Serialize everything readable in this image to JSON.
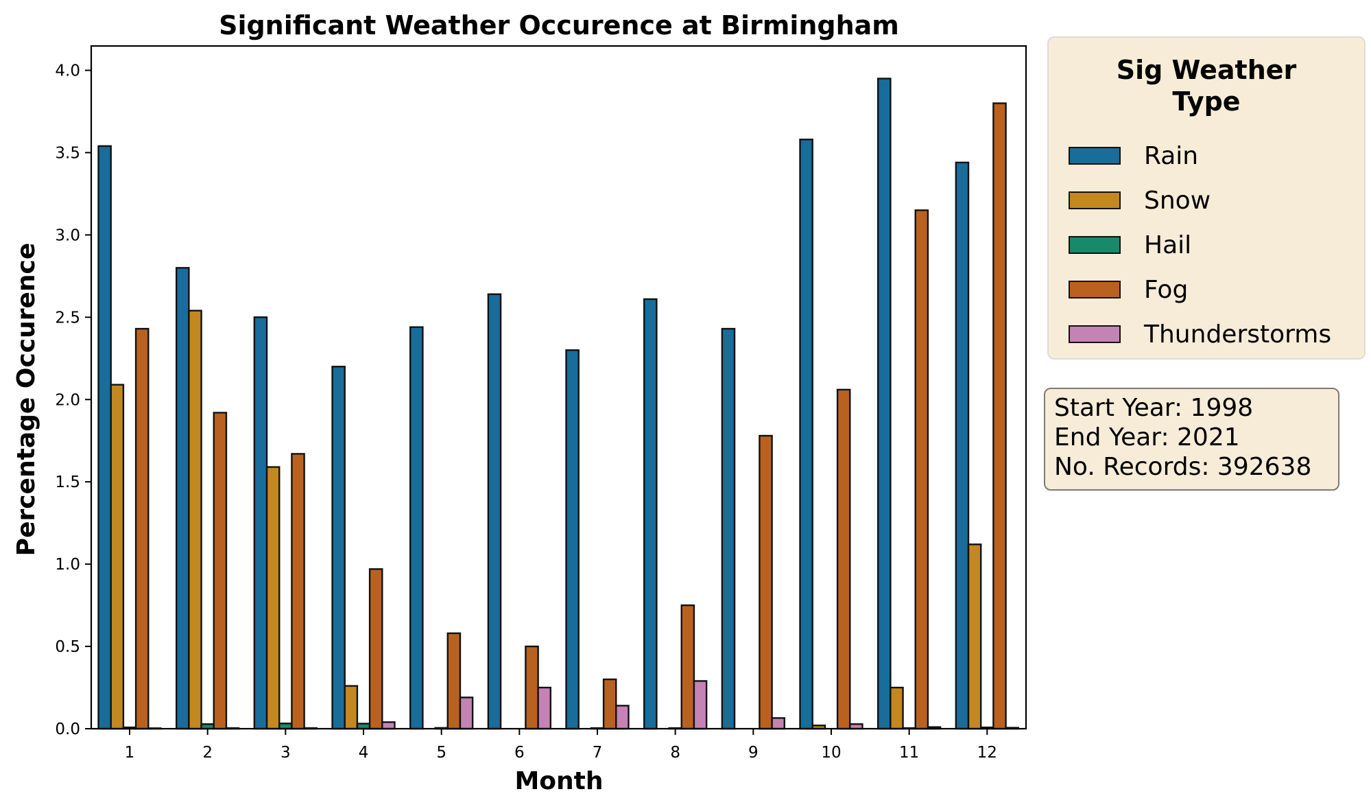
{
  "chart_data": {
    "type": "bar",
    "title": "Significant Weather Occurence at Birmingham",
    "xlabel": "Month",
    "ylabel": "Percentage Occurence",
    "categories": [
      "1",
      "2",
      "3",
      "4",
      "5",
      "6",
      "7",
      "8",
      "9",
      "10",
      "11",
      "12"
    ],
    "yticks": [
      "0.0",
      "0.5",
      "1.0",
      "1.5",
      "2.0",
      "2.5",
      "3.0",
      "3.5",
      "4.0"
    ],
    "ylim": [
      0,
      4.15
    ],
    "grid": false,
    "legend_title": "Sig Weather Type",
    "legend_title_lines": [
      "Sig Weather",
      "Type"
    ],
    "legend_position": "outside-right-top",
    "series": [
      {
        "name": "Rain",
        "color": "#186d9b",
        "values": [
          3.54,
          2.8,
          2.5,
          2.2,
          2.44,
          2.64,
          2.3,
          2.61,
          2.43,
          3.58,
          3.95,
          3.44
        ]
      },
      {
        "name": "Snow",
        "color": "#c38820",
        "values": [
          2.09,
          2.54,
          1.59,
          0.26,
          0.0,
          0.0,
          0.0,
          0.0,
          0.0,
          0.02,
          0.25,
          1.12
        ]
      },
      {
        "name": "Hail",
        "color": "#188a69",
        "values": [
          0.008,
          0.028,
          0.032,
          0.031,
          0.005,
          0.0,
          0.004,
          0.004,
          0.0,
          0.0,
          0.004,
          0.008
        ]
      },
      {
        "name": "Fog",
        "color": "#b9621f",
        "values": [
          2.43,
          1.92,
          1.67,
          0.97,
          0.58,
          0.5,
          0.3,
          0.75,
          1.78,
          2.06,
          3.15,
          3.8
        ]
      },
      {
        "name": "Thunderstorms",
        "color": "#c583b5",
        "values": [
          0.003,
          0.004,
          0.004,
          0.04,
          0.19,
          0.25,
          0.14,
          0.29,
          0.065,
          0.028,
          0.01,
          0.006
        ]
      }
    ],
    "annotation": {
      "start_year_label": "Start Year: 1998",
      "end_year_label": "End Year: 2021",
      "records_label": "No. Records: 392638"
    }
  }
}
